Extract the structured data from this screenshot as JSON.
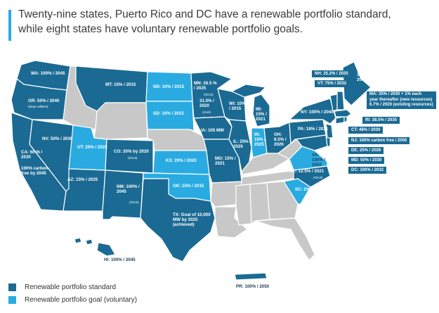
{
  "title_line1": "Twenty-nine states, Puerto Rico and DC have a renewable portfolio standard,",
  "title_line2": "while eight states have voluntary renewable portfolio goals.",
  "colors": {
    "standard": "#1a6a93",
    "goal": "#29abe2",
    "none": "#c8c8c8",
    "accent_bar": "#29abe2"
  },
  "states": {
    "WA": "WA: 100% / 2045",
    "OR": "OR: 50% / 2040",
    "OR_note": "(large utilities)",
    "CA": "CA: 60 % / 2030",
    "CA_carbon": "100% carbon-free by 2045",
    "NV": "NV: 50% / 2030",
    "AZ": "AZ: 15% / 2025",
    "UT": "UT: 20% / 2025",
    "CO": "CO: 30% by 2020",
    "CO_note": "(IOUs)",
    "NM": "NM: 100% / 2045",
    "NM_note": "(IOUs)",
    "MT": "MT: 15% / 2015",
    "ND": "ND: 10% / 2015",
    "SD": "SD: 10% / 2015",
    "MN1": "MN: 26.5 % / 2025",
    "MN1_note": "(IOUs)",
    "MN2": "31.5% / 2020",
    "MN2_note": "(Xcel)",
    "IA": "IA: 105 MW",
    "KS": "KS: 20% / 2020",
    "OK": "OK: 15% / 2015",
    "TX": "TX: Goal of 10,000 MW by 2025 (achieved)",
    "MO": "MO: 15% / 2021",
    "WI": "WI: 10% / 2015",
    "IL": "IL: 25% / 2026",
    "MI": "MI: 15% / 2021",
    "IN": "IN: 10% / 2025",
    "OH": "OH: 8.5% / 2026",
    "NY": "NY: 100% / 2040",
    "PA": "PA: 18% / 2021",
    "VA": "VA: 100% / 2050",
    "NC": "NC: 12.5% / 2021",
    "NC_note": "(IOUs)",
    "SC": "SC: 2% 2021",
    "ME": "ME: 100% / 2050",
    "HI": "HI: 100% / 2045",
    "PR": "PR: 100% / 2050"
  },
  "callouts": {
    "NH": "NH: 25.2% / 2025",
    "VT": "VT: 75% / 2032",
    "MA1": "MA: 35% / 2030 + 1% each",
    "MA2": "year thereafter (new resources)",
    "MA3": "6.7% / 2020 (existing resources)",
    "RI": "RI: 38.5% / 2035",
    "CT": "CT: 48% / 2030",
    "NJ": "NJ: 100% carbon free / 2050",
    "DE": "DE: 25% / 2026",
    "MD": "MD: 50% / 2030",
    "DC": "DC: 100% / 2032"
  },
  "legend": {
    "standard": "Renewable portfolio standard",
    "goal": "Renewable portfolio goal (voluntary)"
  }
}
